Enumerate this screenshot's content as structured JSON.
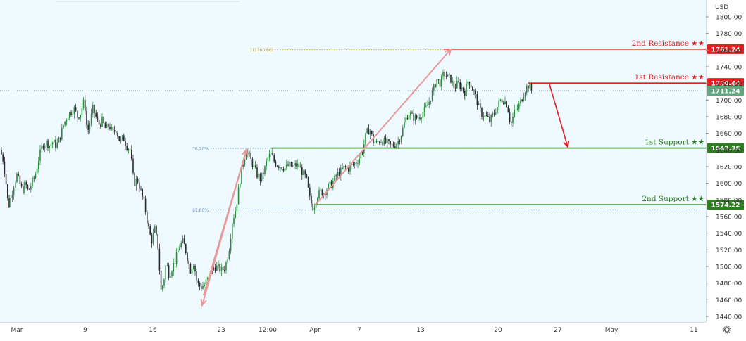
{
  "chart_data": {
    "type": "candlestick",
    "currency_label": "USD",
    "ylim": [
      1440,
      1810
    ],
    "y_ticks": [
      1440,
      1460,
      1480,
      1500,
      1520,
      1540,
      1560,
      1580,
      1600,
      1620,
      1640,
      1660,
      1680,
      1700,
      1720,
      1740,
      1760,
      1780,
      1800
    ],
    "y_tick_labels": [
      "1440.00",
      "1460.00",
      "1480.00",
      "1500.00",
      "1520.00",
      "1540.00",
      "1560.00",
      "1580.00",
      "1600.00",
      "1620.00",
      "1640.00",
      "1660.00",
      "1680.00",
      "1700.00",
      "1720.00",
      "1740.00",
      "1760.00",
      "1780.00",
      "1800.00"
    ],
    "x_labels": [
      "Mar",
      "9",
      "16",
      "23",
      "12:00",
      "Apr",
      "7",
      "13",
      "20",
      "27",
      "May",
      "11"
    ],
    "current_price": {
      "value": 1711.24,
      "label": "1711.24",
      "color": "#63a57f"
    },
    "levels": [
      {
        "name": "2nd Resistance ★★",
        "value": 1761.24,
        "label": "1761.24",
        "color": "#e0201f"
      },
      {
        "name": "1st Resistance ★★",
        "value": 1720.44,
        "label": "1720.44",
        "color": "#e0201f"
      },
      {
        "name": "1st Support ★★",
        "value": 1642.36,
        "label": "1642.36",
        "color": "#2e7d20"
      },
      {
        "name": "2nd Support ★★",
        "value": 1574.22,
        "label": "1574.22",
        "color": "#2e7d20"
      }
    ],
    "fib_labels": [
      {
        "label": "1(1760.66)",
        "value": 1760.66,
        "color": "#c9a227"
      },
      {
        "label": "38.20%",
        "value": 1642.0,
        "color": "#5a8fd0"
      },
      {
        "label": "61.80%",
        "value": 1568.0,
        "color": "#5a8fd0"
      }
    ],
    "price_path": [
      [
        0,
        1640
      ],
      [
        4,
        1630
      ],
      [
        8,
        1605
      ],
      [
        12,
        1570
      ],
      [
        16,
        1585
      ],
      [
        20,
        1600
      ],
      [
        24,
        1610
      ],
      [
        28,
        1600
      ],
      [
        32,
        1590
      ],
      [
        36,
        1600
      ],
      [
        40,
        1590
      ],
      [
        45,
        1600
      ],
      [
        50,
        1610
      ],
      [
        55,
        1630
      ],
      [
        60,
        1645
      ],
      [
        65,
        1650
      ],
      [
        70,
        1645
      ],
      [
        75,
        1650
      ],
      [
        80,
        1645
      ],
      [
        85,
        1655
      ],
      [
        90,
        1670
      ],
      [
        95,
        1680
      ],
      [
        100,
        1685
      ],
      [
        105,
        1690
      ],
      [
        110,
        1680
      ],
      [
        115,
        1685
      ],
      [
        118,
        1698
      ],
      [
        121,
        1690
      ],
      [
        124,
        1660
      ],
      [
        128,
        1675
      ],
      [
        132,
        1690
      ],
      [
        136,
        1680
      ],
      [
        140,
        1670
      ],
      [
        145,
        1675
      ],
      [
        150,
        1665
      ],
      [
        155,
        1670
      ],
      [
        160,
        1660
      ],
      [
        165,
        1665
      ],
      [
        170,
        1650
      ],
      [
        175,
        1655
      ],
      [
        180,
        1645
      ],
      [
        185,
        1640
      ],
      [
        190,
        1600
      ],
      [
        195,
        1605
      ],
      [
        200,
        1590
      ],
      [
        205,
        1575
      ],
      [
        210,
        1550
      ],
      [
        215,
        1530
      ],
      [
        220,
        1545
      ],
      [
        225,
        1520
      ],
      [
        228,
        1470
      ],
      [
        232,
        1480
      ],
      [
        236,
        1505
      ],
      [
        240,
        1490
      ],
      [
        245,
        1500
      ],
      [
        250,
        1510
      ],
      [
        255,
        1525
      ],
      [
        260,
        1530
      ],
      [
        265,
        1515
      ],
      [
        270,
        1495
      ],
      [
        275,
        1505
      ],
      [
        280,
        1480
      ],
      [
        285,
        1475
      ],
      [
        290,
        1478
      ],
      [
        295,
        1485
      ],
      [
        300,
        1495
      ],
      [
        305,
        1500
      ],
      [
        310,
        1498
      ],
      [
        315,
        1495
      ],
      [
        320,
        1500
      ],
      [
        325,
        1520
      ],
      [
        330,
        1555
      ],
      [
        335,
        1570
      ],
      [
        340,
        1600
      ],
      [
        345,
        1625
      ],
      [
        350,
        1640
      ],
      [
        355,
        1630
      ],
      [
        360,
        1620
      ],
      [
        365,
        1610
      ],
      [
        370,
        1605
      ],
      [
        375,
        1615
      ],
      [
        380,
        1630
      ],
      [
        385,
        1635
      ],
      [
        390,
        1625
      ],
      [
        395,
        1622
      ],
      [
        400,
        1620
      ],
      [
        405,
        1618
      ],
      [
        410,
        1622
      ],
      [
        415,
        1620
      ],
      [
        420,
        1622
      ],
      [
        425,
        1620
      ],
      [
        430,
        1612
      ],
      [
        435,
        1605
      ],
      [
        440,
        1580
      ],
      [
        445,
        1570
      ],
      [
        450,
        1585
      ],
      [
        455,
        1590
      ],
      [
        460,
        1588
      ],
      [
        465,
        1595
      ],
      [
        470,
        1598
      ],
      [
        475,
        1605
      ],
      [
        480,
        1612
      ],
      [
        485,
        1615
      ],
      [
        490,
        1620
      ],
      [
        495,
        1618
      ],
      [
        500,
        1622
      ],
      [
        505,
        1625
      ],
      [
        510,
        1630
      ],
      [
        515,
        1640
      ],
      [
        520,
        1660
      ],
      [
        525,
        1665
      ],
      [
        530,
        1650
      ],
      [
        535,
        1648
      ],
      [
        540,
        1652
      ],
      [
        545,
        1650
      ],
      [
        550,
        1648
      ],
      [
        555,
        1645
      ],
      [
        560,
        1646
      ],
      [
        565,
        1650
      ],
      [
        570,
        1660
      ],
      [
        575,
        1675
      ],
      [
        580,
        1685
      ],
      [
        585,
        1680
      ],
      [
        590,
        1678
      ],
      [
        595,
        1680
      ],
      [
        600,
        1685
      ],
      [
        605,
        1690
      ],
      [
        610,
        1700
      ],
      [
        615,
        1712
      ],
      [
        620,
        1725
      ],
      [
        625,
        1720
      ],
      [
        630,
        1732
      ],
      [
        635,
        1728
      ],
      [
        640,
        1725
      ],
      [
        645,
        1715
      ],
      [
        650,
        1720
      ],
      [
        655,
        1715
      ],
      [
        660,
        1710
      ],
      [
        665,
        1725
      ],
      [
        670,
        1715
      ],
      [
        675,
        1705
      ],
      [
        680,
        1690
      ],
      [
        685,
        1682
      ],
      [
        690,
        1680
      ],
      [
        695,
        1675
      ],
      [
        700,
        1682
      ],
      [
        705,
        1690
      ],
      [
        710,
        1700
      ],
      [
        715,
        1700
      ],
      [
        720,
        1695
      ],
      [
        725,
        1670
      ],
      [
        730,
        1685
      ],
      [
        735,
        1690
      ],
      [
        740,
        1700
      ],
      [
        745,
        1712
      ],
      [
        750,
        1718
      ],
      [
        755,
        1711
      ]
    ]
  }
}
